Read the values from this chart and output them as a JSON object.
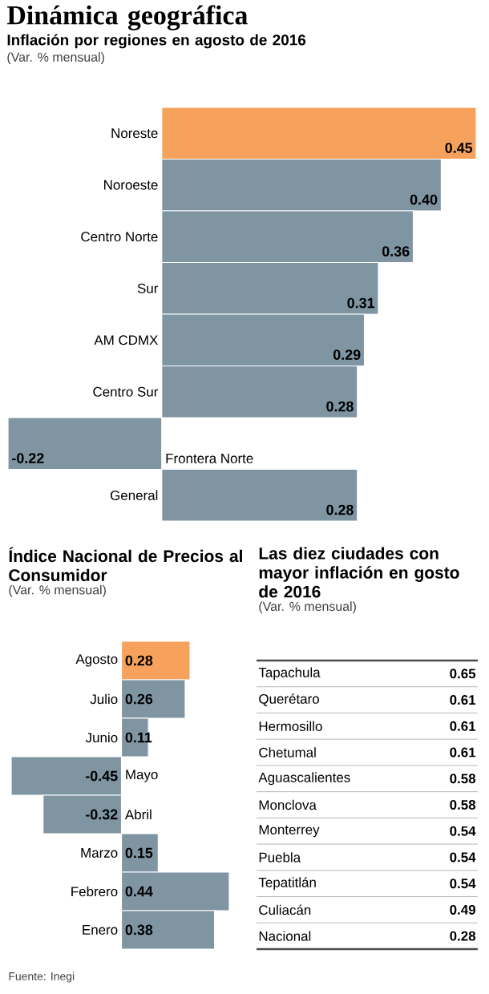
{
  "chart_data": [
    {
      "type": "bar",
      "orientation": "horizontal",
      "title": "Dinámica geográfica",
      "subtitle": "Inflación por regiones en agosto de 2016",
      "annotations": [
        "(Var. % mensual)"
      ],
      "categories": [
        "Noreste",
        "Noroeste",
        "Centro Norte",
        "Sur",
        "AM CDMX",
        "Centro Sur",
        "Frontera Norte",
        "General"
      ],
      "values": [
        0.45,
        0.4,
        0.36,
        0.31,
        0.29,
        0.28,
        -0.22,
        0.28
      ],
      "colors": [
        "#f6a25c",
        "#7f95a2",
        "#7f95a2",
        "#7f95a2",
        "#7f95a2",
        "#7f95a2",
        "#7f95a2",
        "#7f95a2"
      ],
      "value_labels": [
        "0.45",
        "0.40",
        "0.36",
        "0.31",
        "0.29",
        "0.28",
        "-0.22",
        "0.28"
      ]
    },
    {
      "type": "bar",
      "orientation": "horizontal",
      "title": "Índice Nacional de Precios al Consumidor",
      "annotations": [
        "(Var. % mensual)",
        "Fuente: Inegi"
      ],
      "categories": [
        "Agosto",
        "Julio",
        "Junio",
        "Mayo",
        "Abril",
        "Marzo",
        "Febrero",
        "Enero"
      ],
      "values": [
        0.28,
        0.26,
        0.11,
        -0.45,
        -0.32,
        0.15,
        0.44,
        0.38
      ],
      "colors": [
        "#f6a25c",
        "#7f95a2",
        "#7f95a2",
        "#7f95a2",
        "#7f95a2",
        "#7f95a2",
        "#7f95a2",
        "#7f95a2"
      ],
      "data_labels": true
    },
    {
      "type": "other",
      "title": "Las diez ciudades con mayor inflación en gosto de 2016",
      "annotations": [
        "(Var. % mensual)"
      ],
      "categories": [
        "Tapachula",
        "Querétaro",
        "Hermosillo",
        "Chetumal",
        "Aguascalientes",
        "Monclova",
        "Monterrey",
        "Puebla",
        "Tepatitlán",
        "Culiacán",
        "Nacional"
      ],
      "values": [
        0.65,
        0.61,
        0.61,
        0.61,
        0.58,
        0.58,
        0.54,
        0.54,
        0.54,
        0.49,
        0.28
      ],
      "data_labels": true
    }
  ]
}
